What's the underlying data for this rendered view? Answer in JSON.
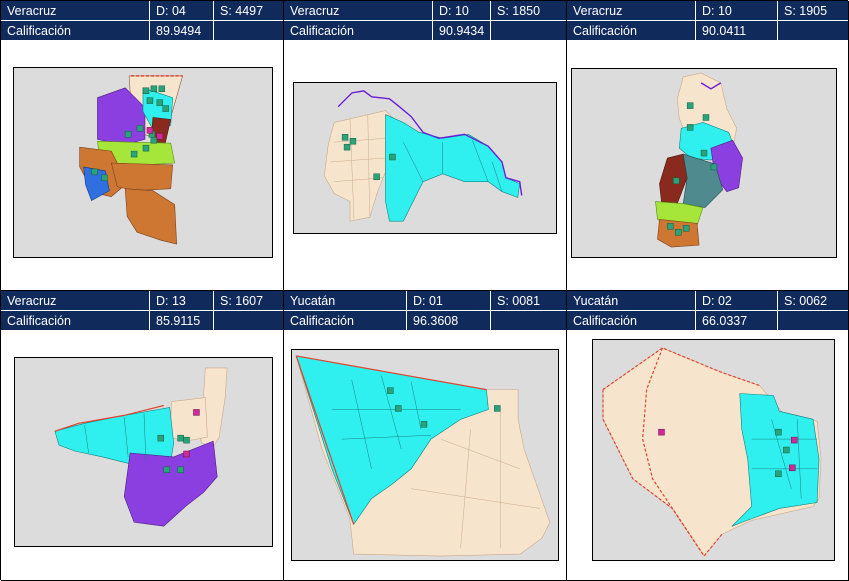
{
  "panels": [
    {
      "state": "Veracruz",
      "district": "D: 04",
      "section": "S: 4497",
      "score_label": "Calificación",
      "score": "89.9494"
    },
    {
      "state": "Veracruz",
      "district": "D: 10",
      "section": "S: 1850",
      "score_label": "Calificación",
      "score": "90.9434"
    },
    {
      "state": "Veracruz",
      "district": "D: 10",
      "section": "S: 1905",
      "score_label": "Calificación",
      "score": "90.0411"
    },
    {
      "state": "Veracruz",
      "district": "D: 13",
      "section": "S: 1607",
      "score_label": "Calificación",
      "score": "85.9115"
    },
    {
      "state": "Yucatán",
      "district": "D: 01",
      "section": "S: 0081",
      "score_label": "Calificación",
      "score": "96.3608"
    },
    {
      "state": "Yucatán",
      "district": "D: 02",
      "section": "S: 0062",
      "score_label": "Calificación",
      "score": "66.0337"
    }
  ],
  "colors": {
    "header_bg": "#102a5c",
    "map_bg": "#dcdcdc",
    "zone_peach": "#f7e4cc",
    "zone_cyan": "#2ff0ee",
    "zone_purple": "#8b3fe0",
    "zone_orange": "#cd7733",
    "zone_lime": "#a6e63a",
    "zone_dark_red": "#8a2a1f",
    "zone_blue": "#2f6fe0",
    "zone_teal_gray": "#4f8a8f",
    "boundary_red": "#e0432f",
    "boundary_purple": "#6a1ed8",
    "marker_teal": "#2aa37a",
    "marker_magenta": "#d02a9a"
  }
}
